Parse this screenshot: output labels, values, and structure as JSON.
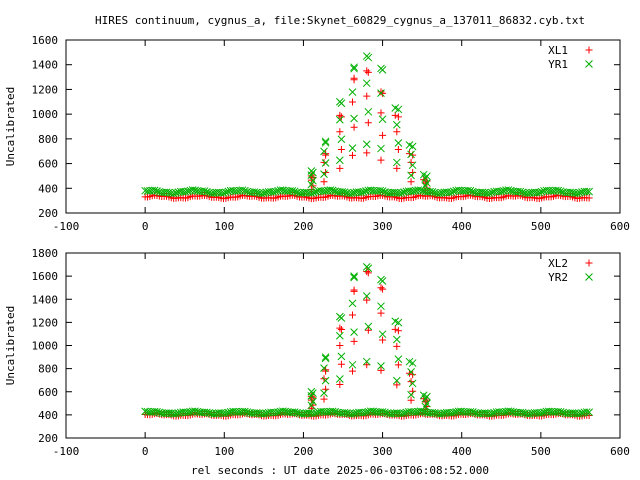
{
  "title": "HIRES continuum, cygnus_a, file:Skynet_60829_cygnus_a_137011_86832.cyb.txt",
  "xlabel": "rel seconds : UT date 2025-06-03T06:08:52.000",
  "colors": {
    "red": "#ff0000",
    "green": "#00b000"
  },
  "chart_data": [
    {
      "type": "scatter",
      "ylabel": "Uncalibrated",
      "xlim": [
        -100,
        600
      ],
      "ylim": [
        200,
        1600
      ],
      "xticks": [
        -100,
        0,
        100,
        200,
        300,
        400,
        500,
        600
      ],
      "yticks": [
        200,
        400,
        600,
        800,
        1000,
        1200,
        1400,
        1600
      ],
      "legend_position": "top-right",
      "baseline": {
        "x_range": [
          0,
          562
        ],
        "step": 3,
        "series_base": {
          "XL1": 330,
          "YR1": 372
        },
        "ripple": 10
      },
      "scan_times": [
        210,
        226,
        246,
        262,
        280,
        298,
        318,
        336,
        354
      ],
      "series": [
        {
          "name": "XL1",
          "marker": "plus",
          "color": "#ff0000",
          "peak_x": [
            210,
            228,
            246,
            264,
            280,
            298,
            316,
            334,
            352
          ],
          "peak_y": [
            500,
            680,
            990,
            1290,
            1350,
            1180,
            990,
            680,
            470
          ]
        },
        {
          "name": "YR1",
          "marker": "cross",
          "color": "#00b000",
          "peak_x": [
            210,
            228,
            246,
            264,
            280,
            298,
            316,
            334,
            352
          ],
          "peak_y": [
            540,
            780,
            1100,
            1380,
            1470,
            1370,
            1050,
            750,
            510
          ]
        }
      ]
    },
    {
      "type": "scatter",
      "ylabel": "Uncalibrated",
      "xlim": [
        -100,
        600
      ],
      "ylim": [
        200,
        1800
      ],
      "xticks": [
        -100,
        0,
        100,
        200,
        300,
        400,
        500,
        600
      ],
      "yticks": [
        200,
        400,
        600,
        800,
        1000,
        1200,
        1400,
        1600,
        1800
      ],
      "legend_position": "top-right",
      "baseline": {
        "x_range": [
          0,
          562
        ],
        "step": 3,
        "series_base": {
          "XL2": 400,
          "YR2": 420
        },
        "ripple": 8
      },
      "scan_times": [
        210,
        226,
        246,
        262,
        280,
        298,
        318,
        336,
        354
      ],
      "series": [
        {
          "name": "XL2",
          "marker": "plus",
          "color": "#ff0000",
          "peak_x": [
            210,
            228,
            246,
            264,
            280,
            298,
            316,
            334,
            352
          ],
          "peak_y": [
            560,
            790,
            1150,
            1480,
            1640,
            1500,
            1140,
            760,
            540
          ]
        },
        {
          "name": "YR2",
          "marker": "cross",
          "color": "#00b000",
          "peak_x": [
            210,
            228,
            246,
            264,
            280,
            298,
            316,
            334,
            352
          ],
          "peak_y": [
            600,
            900,
            1250,
            1600,
            1680,
            1570,
            1210,
            860,
            570
          ]
        }
      ]
    }
  ]
}
